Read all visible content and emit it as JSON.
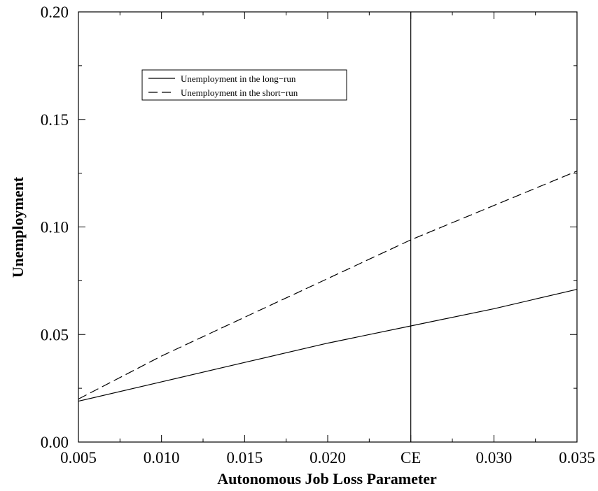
{
  "chart_data": {
    "type": "line",
    "title": "",
    "xlabel": "Autonomous Job Loss Parameter",
    "ylabel": "Unemployment",
    "xlim": [
      0.005,
      0.035
    ],
    "ylim": [
      0.0,
      0.2
    ],
    "x_ticks": [
      {
        "value": 0.005,
        "label": "0.005"
      },
      {
        "value": 0.01,
        "label": "0.010"
      },
      {
        "value": 0.015,
        "label": "0.015"
      },
      {
        "value": 0.02,
        "label": "0.020"
      },
      {
        "value": 0.025,
        "label": "CE"
      },
      {
        "value": 0.03,
        "label": "0.030"
      },
      {
        "value": 0.035,
        "label": "0.035"
      }
    ],
    "y_ticks": [
      {
        "value": 0.0,
        "label": "0.00"
      },
      {
        "value": 0.05,
        "label": "0.05"
      },
      {
        "value": 0.1,
        "label": "0.10"
      },
      {
        "value": 0.15,
        "label": "0.15"
      },
      {
        "value": 0.2,
        "label": "0.20"
      }
    ],
    "series": [
      {
        "name": "Unemployment in the long−run",
        "style": "solid",
        "color": "#000000",
        "x": [
          0.005,
          0.01,
          0.015,
          0.02,
          0.025,
          0.03,
          0.035
        ],
        "y": [
          0.019,
          0.028,
          0.037,
          0.046,
          0.054,
          0.062,
          0.071
        ]
      },
      {
        "name": "Unemployment in the short−run",
        "style": "dashed",
        "color": "#000000",
        "x": [
          0.005,
          0.01,
          0.015,
          0.02,
          0.025,
          0.03,
          0.035
        ],
        "y": [
          0.02,
          0.04,
          0.058,
          0.076,
          0.094,
          0.11,
          0.126
        ]
      }
    ],
    "reference_line": {
      "x": 0.025,
      "label": "CE"
    },
    "legend_position": "top-left",
    "grid": false
  }
}
